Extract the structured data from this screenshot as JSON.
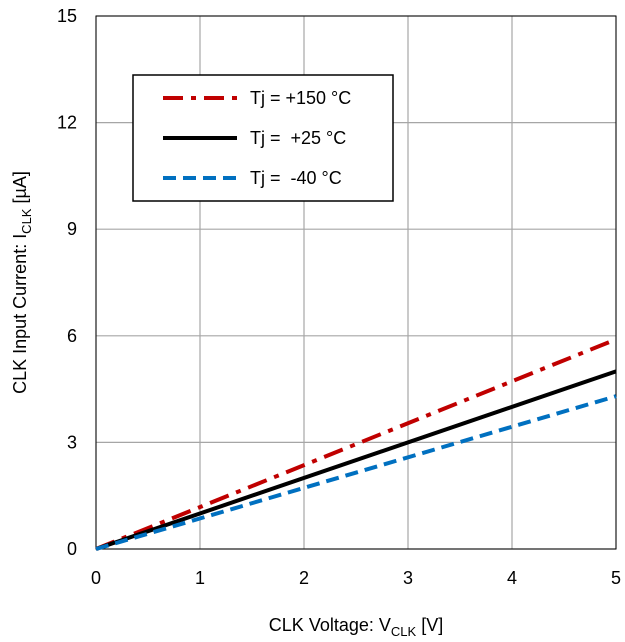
{
  "chart_data": {
    "type": "line",
    "xlabel": {
      "main": "CLK Voltage: V",
      "sub": "CLK",
      "unit": " [V]"
    },
    "ylabel": {
      "main": "CLK Input Current: I",
      "sub": "CLK",
      "unit": " [µA]"
    },
    "xlim": [
      0,
      5
    ],
    "ylim": [
      0,
      15
    ],
    "x_ticks": [
      "0",
      "1",
      "2",
      "3",
      "4",
      "5"
    ],
    "y_ticks": [
      "0",
      "3",
      "6",
      "9",
      "12",
      "15"
    ],
    "grid": true,
    "legend_position": "top-left",
    "series": [
      {
        "name": "Tj = +150 °C",
        "color": "#c00000",
        "style": "dashdot",
        "x": [
          0,
          5
        ],
        "y": [
          0,
          5.9
        ]
      },
      {
        "name": "Tj =  +25 °C",
        "color": "#000000",
        "style": "solid",
        "x": [
          0,
          5
        ],
        "y": [
          0,
          5.0
        ]
      },
      {
        "name": "Tj =  -40 °C",
        "color": "#0070c0",
        "style": "dash",
        "x": [
          0,
          5
        ],
        "y": [
          0,
          4.3
        ]
      }
    ]
  }
}
